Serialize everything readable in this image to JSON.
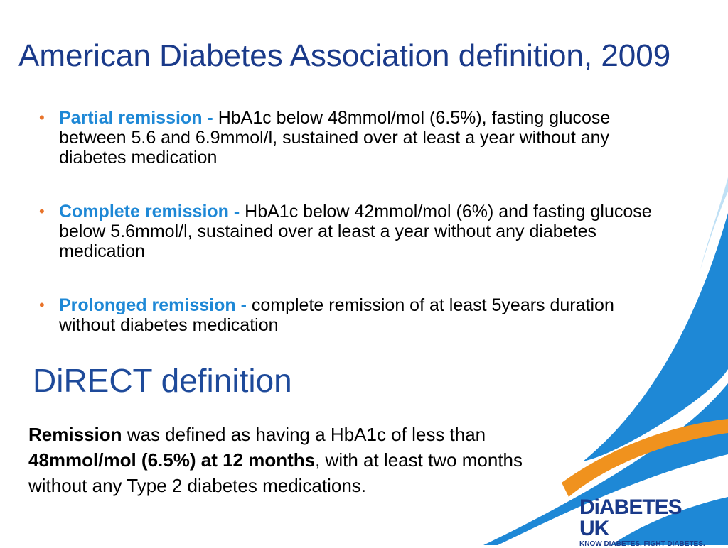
{
  "title": "American Diabetes Association definition, 2009",
  "bullets": [
    {
      "term": "Partial remission - ",
      "text": "HbA1c below 48mmol/mol (6.5%), fasting glucose between 5.6 and 6.9mmol/l, sustained over at least a year without any diabetes medication"
    },
    {
      "term": "Complete remission - ",
      "text": "HbA1c below 42mmol/mol (6%) and fasting glucose below 5.6mmol/l, sustained over at least a year without any diabetes medication"
    },
    {
      "term": "Prolonged remission - ",
      "text": "complete remission of at least 5years duration without diabetes medication"
    }
  ],
  "direct": {
    "heading": "DiRECT definition",
    "bold1": "Remission",
    "text1": " was defined as having a HbA1c of less than ",
    "bold2": "48mmol/mol (6.5%) at 12 months",
    "text2": ", with at least two months without any Type 2 diabetes medications."
  },
  "logo": {
    "name": "DiABETES UK",
    "tagline": "KNOW DIABETES. FIGHT DIABETES."
  },
  "colors": {
    "title": "#1a3a8a",
    "term": "#1e88d6",
    "bullet": "#e8732a",
    "swoosh_blue": "#1e88d6",
    "swoosh_orange": "#f0921e"
  }
}
